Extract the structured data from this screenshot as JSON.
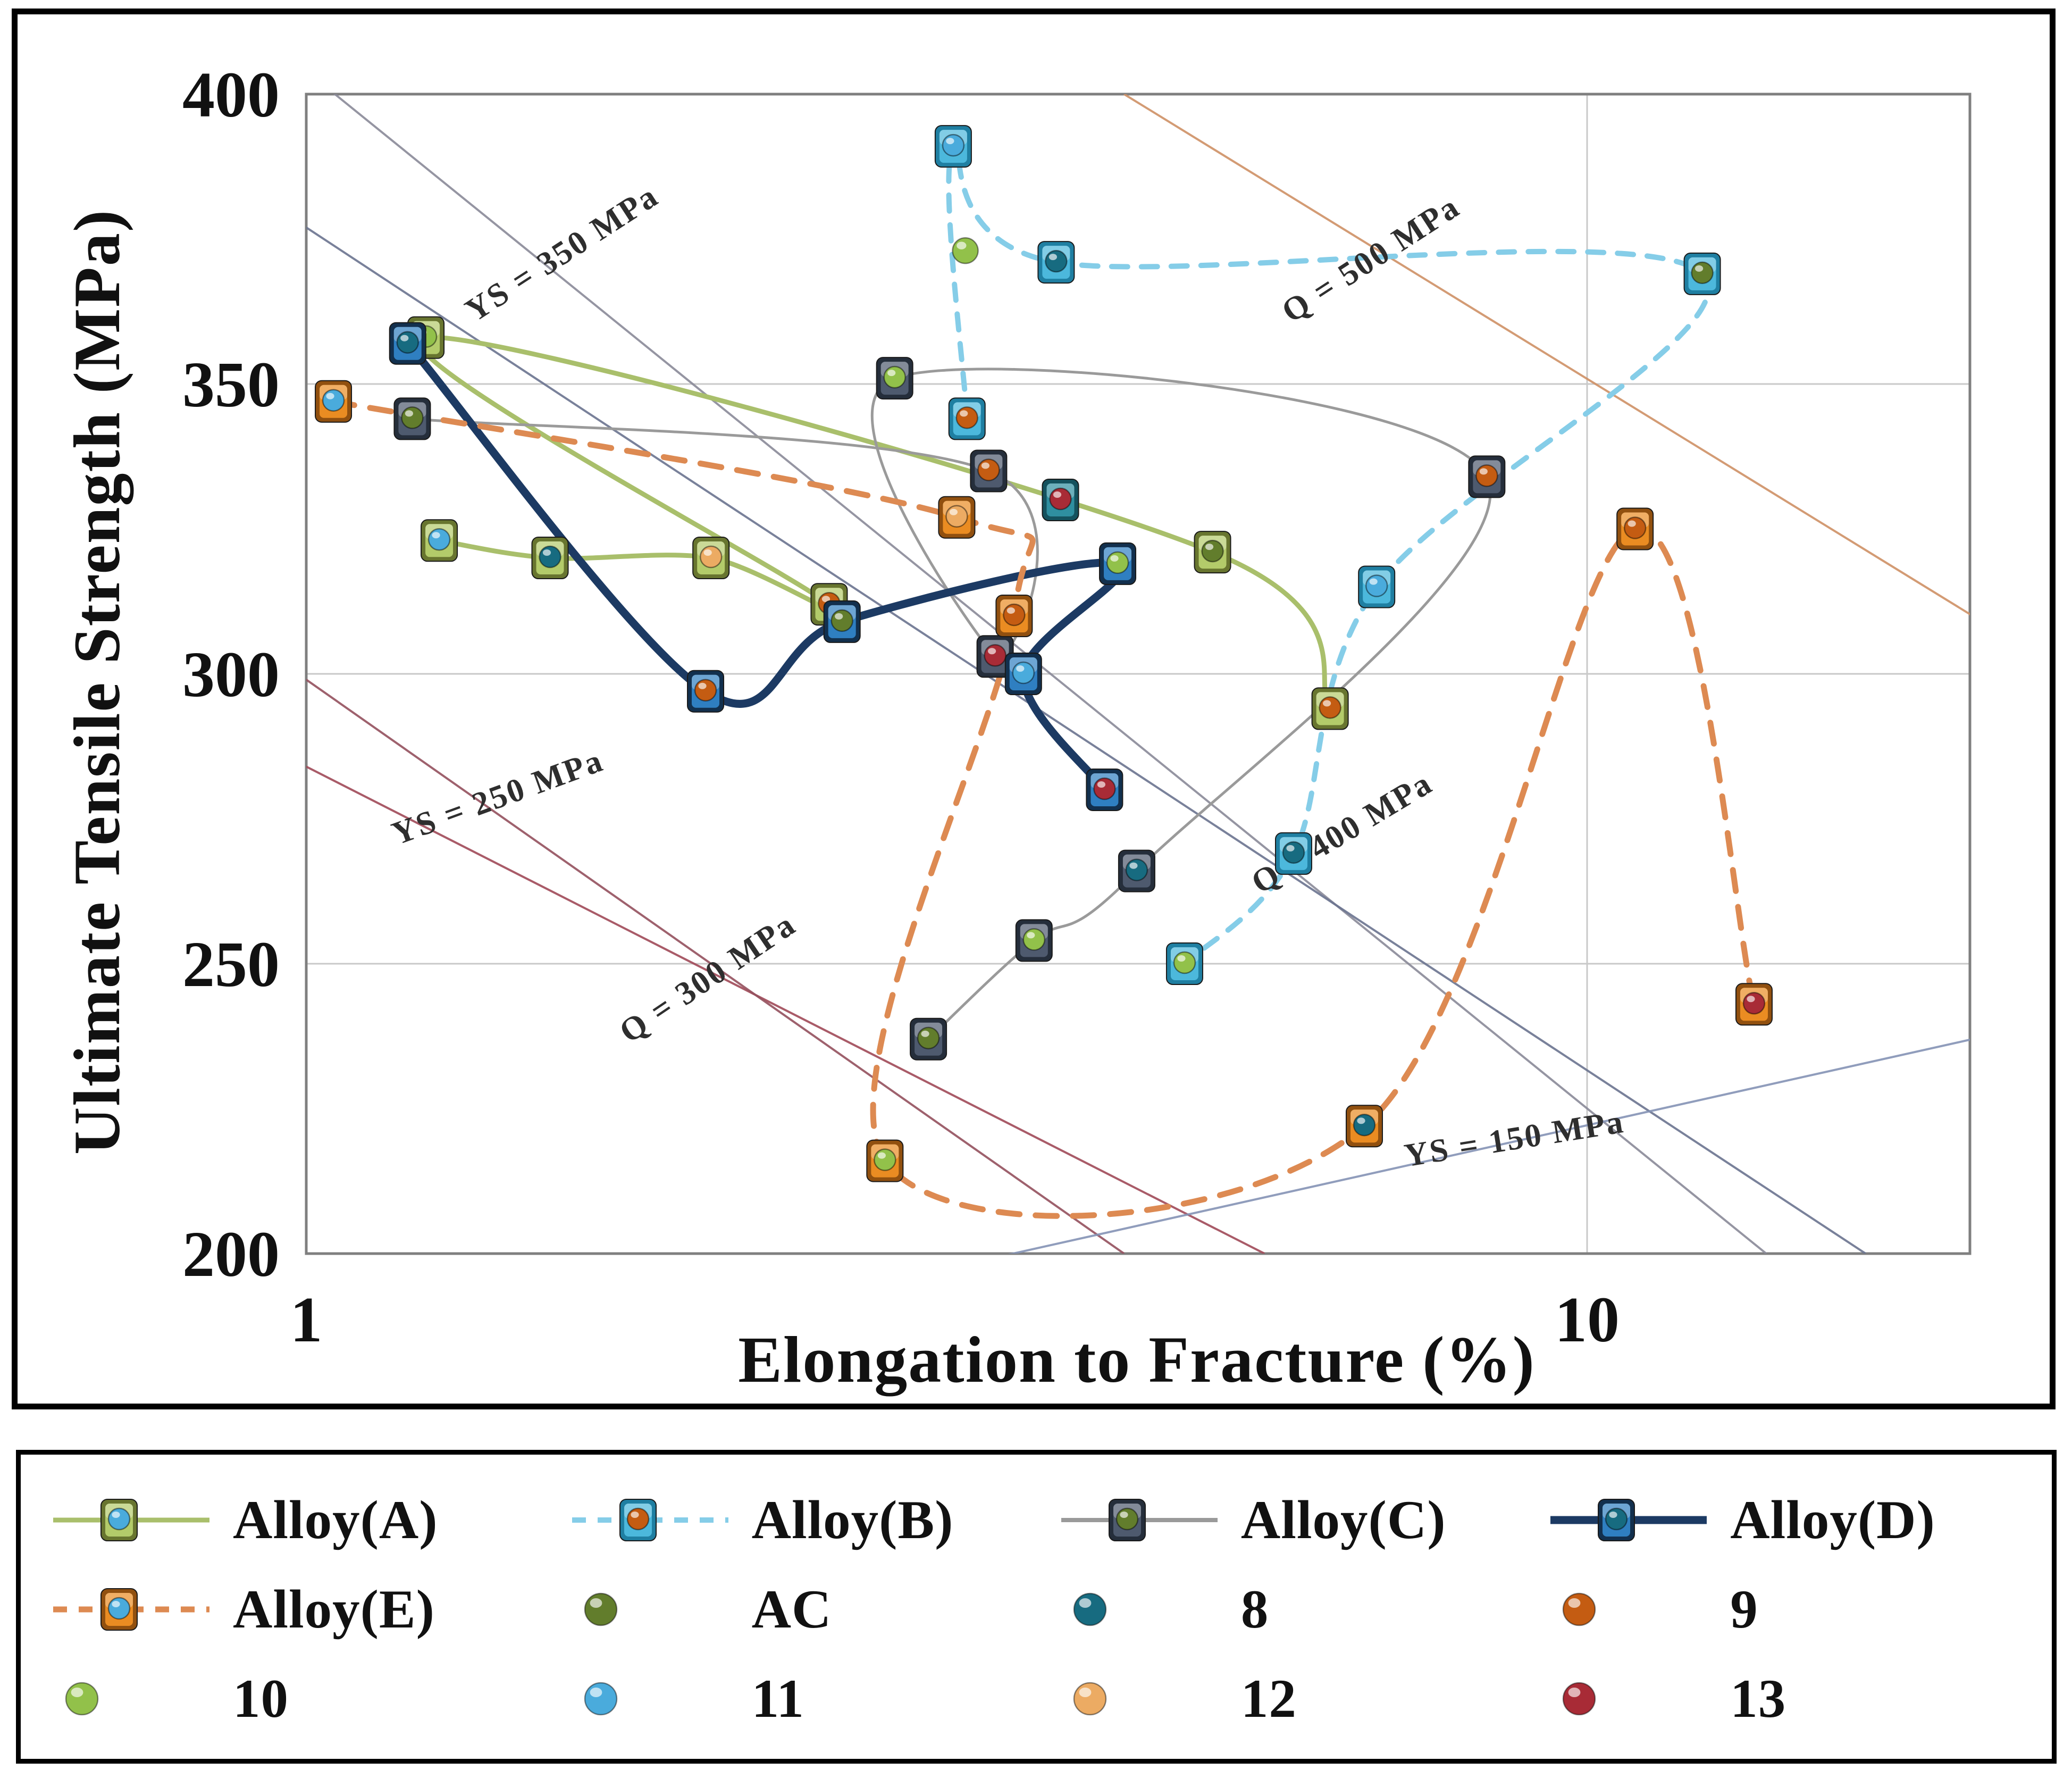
{
  "axis": {
    "x_title": "Elongation to Fracture (%)",
    "y_title": "Ultimate Tensile Strength (MPa)"
  },
  "chart_data": {
    "type": "scatter",
    "x_scale": "log",
    "xlabel": "Elongation to Fracture (%)",
    "ylabel": "Ultimate Tensile Strength (MPa)",
    "xlim": [
      1,
      19.9
    ],
    "ylim": [
      200,
      400
    ],
    "x_ticks": [
      {
        "value": 1,
        "label": "1"
      },
      {
        "value": 10,
        "label": "10"
      }
    ],
    "y_ticks": [
      {
        "value": 400,
        "label": "400"
      },
      {
        "value": 350,
        "label": "350"
      },
      {
        "value": 300,
        "label": "300"
      },
      {
        "value": 250,
        "label": "250"
      },
      {
        "value": 200,
        "label": "200"
      }
    ],
    "grid_y": [
      250,
      300,
      350
    ],
    "grid_x": [
      10
    ],
    "grid_color": "#c9c9c9",
    "frame_color": "#7f7f7f",
    "reference_lines": [
      {
        "id": "ys-350",
        "label": "YS = 350 MPa",
        "color": "#8a8a99",
        "from": [
          1,
          404
        ],
        "to": [
          13.8,
          200
        ],
        "label_at": [
          1.6,
          371
        ],
        "rot": -33
      },
      {
        "id": "q-500",
        "label": "Q = 500 MPa",
        "color": "#cf9166",
        "from": [
          4.35,
          400
        ],
        "to": [
          20,
          310
        ],
        "label_at": [
          6.85,
          370
        ],
        "rot": -33
      },
      {
        "id": "q-400",
        "label": "Q = 400 MPa",
        "color": "#6b7490",
        "from": [
          1,
          377
        ],
        "to": [
          16.5,
          200
        ],
        "label_at": [
          6.5,
          271
        ],
        "rot": -31
      },
      {
        "id": "ys-250",
        "label": "YS = 250 MPa",
        "color": "#a04a58",
        "from": [
          1,
          284
        ],
        "to": [
          5.6,
          200
        ],
        "label_at": [
          1.42,
          277
        ],
        "rot": -20
      },
      {
        "id": "q-300",
        "label": "Q = 300 MPa",
        "color": "#94505e",
        "from": [
          1,
          299
        ],
        "to": [
          4.35,
          200
        ],
        "label_at": [
          2.08,
          246
        ],
        "rot": -34
      },
      {
        "id": "ys-150",
        "label": "YS = 150 MPa",
        "color": "#8593b5",
        "from": [
          3.4,
          199
        ],
        "to": [
          20,
          237
        ],
        "label_at": [
          8.8,
          218
        ],
        "rot": -9
      }
    ],
    "condition_colors": {
      "AC": "#627d2c",
      "8": "#176b80",
      "9": "#c45c12",
      "10": "#92c14a",
      "11": "#4aabdc",
      "12": "#ecab63",
      "13": "#a82b36"
    },
    "series": [
      {
        "name": "Alloy(A)",
        "line_color": "#a9bf6b",
        "line_width": 9,
        "dash": null,
        "square_fill": "#b3cb6a",
        "square_edge": "#68752f",
        "points": [
          [
            1.27,
            323
          ],
          [
            1.55,
            320
          ],
          [
            2.07,
            320
          ],
          [
            2.56,
            312
          ],
          [
            1.24,
            358
          ],
          [
            5.1,
            321
          ],
          [
            6.3,
            294
          ]
        ],
        "balls": [
          "11",
          "8",
          "12",
          "9",
          "10",
          "AC",
          "9"
        ]
      },
      {
        "name": "Alloy(B)",
        "line_color": "#85cde8",
        "line_width": 10,
        "dash": "30 26",
        "square_fill": "#4cb8dc",
        "square_edge": "#1f7fa2",
        "points": [
          [
            3.28,
            344
          ],
          [
            3.2,
            391
          ],
          [
            3.85,
            371
          ],
          [
            12.3,
            369
          ],
          [
            6.85,
            315
          ],
          [
            5.9,
            269
          ],
          [
            4.85,
            250
          ]
        ],
        "balls": [
          "9",
          "11",
          "8",
          "AC",
          "11",
          "8",
          "10"
        ]
      },
      {
        "name": "Alloy(C)",
        "line_color": "#9a9a9a",
        "line_width": 5,
        "dash": null,
        "square_fill": "#4e5a6e",
        "square_edge": "#252e3b",
        "points": [
          [
            1.21,
            344
          ],
          [
            3.41,
            335
          ],
          [
            3.45,
            303
          ],
          [
            2.88,
            351
          ],
          [
            8.35,
            334
          ],
          [
            4.45,
            266
          ],
          [
            3.7,
            254
          ],
          [
            3.06,
            237
          ]
        ],
        "balls": [
          "AC",
          "9",
          "13",
          "10",
          "9",
          "8",
          "10",
          "AC"
        ]
      },
      {
        "name": "Alloy(D)",
        "line_color": "#1c3a63",
        "line_width": 15,
        "dash": null,
        "square_fill": "#2f7fc1",
        "square_edge": "#12304e",
        "points": [
          [
            1.2,
            357
          ],
          [
            2.05,
            297
          ],
          [
            2.62,
            309
          ],
          [
            4.3,
            319
          ],
          [
            3.63,
            300
          ],
          [
            4.2,
            280
          ]
        ],
        "balls": [
          "8",
          "9",
          "AC",
          "10",
          "11",
          "13"
        ]
      },
      {
        "name": "Alloy(E)",
        "line_color": "#dd8a52",
        "line_width": 11,
        "dash": "40 30",
        "square_fill": "#ea8c22",
        "square_edge": "#91500f",
        "points": [
          [
            1.05,
            347
          ],
          [
            3.22,
            327
          ],
          [
            3.57,
            310
          ],
          [
            2.83,
            216
          ],
          [
            6.7,
            222
          ],
          [
            10.9,
            325
          ],
          [
            13.5,
            243
          ]
        ],
        "balls": [
          "11",
          "12",
          "9",
          "10",
          "8",
          "9",
          "13"
        ]
      }
    ],
    "extra_markers": [
      {
        "x": 3.88,
        "y": 330,
        "square_fill": "#2f8fa0",
        "square_edge": "#14525e",
        "ball": "13"
      }
    ],
    "loose_balls": [
      {
        "x": 3.27,
        "y": 373,
        "ball": "10"
      }
    ]
  },
  "legend": {
    "items": [
      {
        "label": "Alloy(A)",
        "type": "line-square",
        "series": 0
      },
      {
        "label": "Alloy(B)",
        "type": "line-square",
        "series": 1
      },
      {
        "label": "Alloy(C)",
        "type": "line-square",
        "series": 2
      },
      {
        "label": "Alloy(D)",
        "type": "line-square",
        "series": 3
      },
      {
        "label": "Alloy(E)",
        "type": "line-square",
        "series": 4
      },
      {
        "label": "AC",
        "type": "ball",
        "ball": "AC"
      },
      {
        "label": "8",
        "type": "ball",
        "ball": "8"
      },
      {
        "label": "9",
        "type": "ball",
        "ball": "9"
      },
      {
        "label": "10",
        "type": "ball",
        "ball": "10"
      },
      {
        "label": "11",
        "type": "ball",
        "ball": "11"
      },
      {
        "label": "12",
        "type": "ball",
        "ball": "12"
      },
      {
        "label": "13",
        "type": "ball",
        "ball": "13"
      }
    ]
  }
}
